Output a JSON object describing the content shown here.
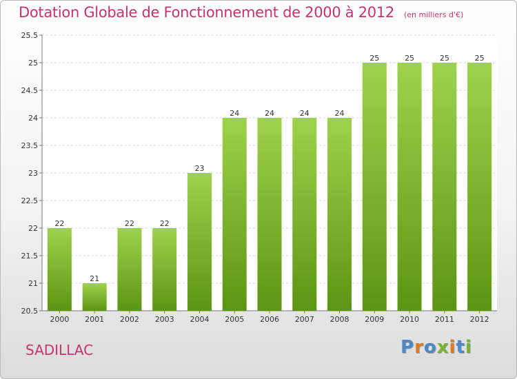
{
  "title": "Dotation Globale de Fonctionnement de 2000 à 2012",
  "unit": "(en milliers d'€)",
  "commune": "SADILLAC",
  "logo_letters": [
    "P",
    "r",
    "o",
    "x",
    "i",
    "t",
    "i"
  ],
  "colors": {
    "title": "#c8326e",
    "bar_top": "#9fd24c",
    "bar_bottom": "#5c9512",
    "logo": [
      "#4b88c7",
      "#e07a1f",
      "#4b88c7",
      "#7bb32e",
      "#e07a1f",
      "#4b88c7",
      "#7bb32e"
    ]
  },
  "chart_data": {
    "type": "bar",
    "categories": [
      "2000",
      "2001",
      "2002",
      "2003",
      "2004",
      "2005",
      "2006",
      "2007",
      "2008",
      "2009",
      "2010",
      "2011",
      "2012"
    ],
    "values": [
      22,
      21,
      22,
      22,
      23,
      24,
      24,
      24,
      24,
      25,
      25,
      25,
      25
    ],
    "data_labels": [
      "22",
      "21",
      "22",
      "22",
      "23",
      "24",
      "24",
      "24",
      "24",
      "25",
      "25",
      "25",
      "25"
    ],
    "ylim": [
      20.5,
      25.5
    ],
    "yticks": [
      "20.5",
      "21",
      "21.5",
      "22",
      "22.5",
      "23",
      "23.5",
      "24",
      "24.5",
      "25",
      "25.5"
    ],
    "grid": true
  }
}
